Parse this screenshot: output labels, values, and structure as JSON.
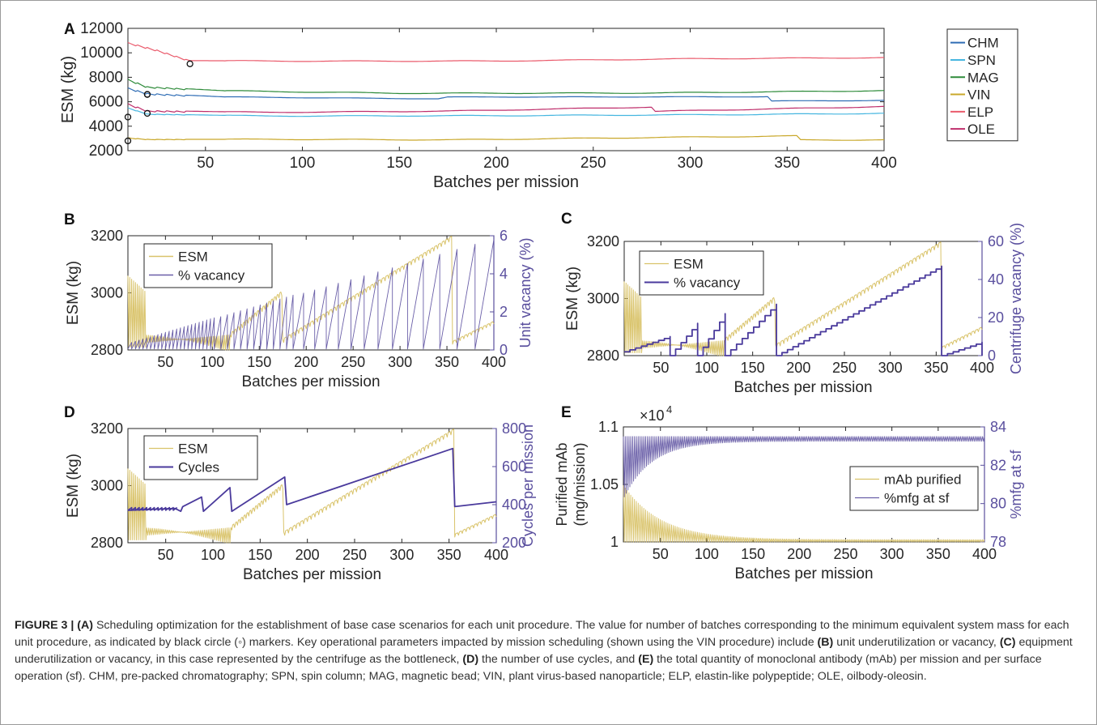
{
  "chart_data": [
    {
      "id": "A",
      "panel_label": "A",
      "type": "line",
      "xlabel": "Batches per mission",
      "ylabel": "ESM (kg)",
      "xlim": [
        10,
        400
      ],
      "ylim": [
        2000,
        12000
      ],
      "xticks": [
        50,
        100,
        150,
        200,
        250,
        300,
        350,
        400
      ],
      "yticks": [
        2000,
        4000,
        6000,
        8000,
        10000,
        12000
      ],
      "legend_position": "top-right",
      "grid": false,
      "series": [
        {
          "name": "CHM",
          "color": "#2f6db5",
          "values": [
            [
              10,
              7000
            ],
            [
              20,
              6550
            ],
            [
              60,
              6300
            ],
            [
              170,
              6200
            ],
            [
              175,
              6350
            ],
            [
              340,
              6400
            ],
            [
              342,
              6050
            ],
            [
              400,
              6100
            ]
          ],
          "marker": [
            20,
            6600
          ]
        },
        {
          "name": "SPN",
          "color": "#46b6e0",
          "values": [
            [
              10,
              5450
            ],
            [
              20,
              4950
            ],
            [
              80,
              4800
            ],
            [
              200,
              4850
            ],
            [
              330,
              4950
            ],
            [
              400,
              5050
            ]
          ],
          "marker": [
            10,
            4750
          ]
        },
        {
          "name": "MAG",
          "color": "#2e8b3a",
          "values": [
            [
              10,
              7700
            ],
            [
              20,
              7100
            ],
            [
              60,
              6800
            ],
            [
              150,
              6650
            ],
            [
              280,
              6700
            ],
            [
              400,
              6900
            ]
          ],
          "marker": [
            20,
            6600
          ]
        },
        {
          "name": "VIN",
          "color": "#c9a82b",
          "values": [
            [
              10,
              3000
            ],
            [
              20,
              2880
            ],
            [
              90,
              2900
            ],
            [
              175,
              2870
            ],
            [
              270,
              3050
            ],
            [
              355,
              3200
            ],
            [
              357,
              2870
            ],
            [
              400,
              2880
            ]
          ],
          "marker": [
            10,
            2800
          ]
        },
        {
          "name": "ELP",
          "color": "#ea5b6c",
          "values": [
            [
              10,
              10700
            ],
            [
              25,
              10100
            ],
            [
              42,
              9250
            ],
            [
              100,
              9250
            ],
            [
              200,
              9300
            ],
            [
              300,
              9500
            ],
            [
              400,
              9600
            ]
          ],
          "marker": [
            42,
            9100
          ]
        },
        {
          "name": "OLE",
          "color": "#bf2e6b",
          "values": [
            [
              10,
              5700
            ],
            [
              20,
              5150
            ],
            [
              80,
              5050
            ],
            [
              175,
              5200
            ],
            [
              280,
              5550
            ],
            [
              282,
              5200
            ],
            [
              400,
              5600
            ]
          ],
          "marker": [
            20,
            5050
          ]
        }
      ]
    },
    {
      "id": "B",
      "panel_label": "B",
      "type": "line",
      "xlabel": "Batches per mission",
      "ylabel": "ESM (kg)",
      "y2label": "Unit vacancy (%)",
      "xlim": [
        10,
        400
      ],
      "ylim": [
        2800,
        3200
      ],
      "y2lim": [
        0,
        6
      ],
      "xticks": [
        50,
        100,
        150,
        200,
        250,
        300,
        350,
        400
      ],
      "yticks": [
        2800,
        3000,
        3200
      ],
      "y2ticks": [
        0,
        2,
        4,
        6
      ],
      "legend_position": "top-left",
      "series": [
        {
          "name": "ESM",
          "color": "#d9c36a",
          "axis": "left"
        },
        {
          "name": "% vacancy",
          "color": "#6a5fa8",
          "axis": "right"
        }
      ]
    },
    {
      "id": "C",
      "panel_label": "C",
      "type": "line",
      "xlabel": "Batches per mission",
      "ylabel": "ESM (kg)",
      "y2label": "Centrifuge vacancy (%)",
      "xlim": [
        10,
        400
      ],
      "ylim": [
        2800,
        3200
      ],
      "y2lim": [
        0,
        60
      ],
      "xticks": [
        50,
        100,
        150,
        200,
        250,
        300,
        350,
        400
      ],
      "yticks": [
        2800,
        3000,
        3200
      ],
      "y2ticks": [
        0,
        20,
        40,
        60
      ],
      "legend_position": "top-left",
      "series": [
        {
          "name": "ESM",
          "color": "#d9c36a",
          "axis": "left"
        },
        {
          "name": "% vacancy",
          "color": "#4a3a9c",
          "axis": "right"
        }
      ]
    },
    {
      "id": "D",
      "panel_label": "D",
      "type": "line",
      "xlabel": "Batches per mission",
      "ylabel": "ESM (kg)",
      "y2label": "Cycles per mission",
      "xlim": [
        10,
        400
      ],
      "ylim": [
        2800,
        3200
      ],
      "y2lim": [
        200,
        800
      ],
      "xticks": [
        50,
        100,
        150,
        200,
        250,
        300,
        350,
        400
      ],
      "yticks": [
        2800,
        3000,
        3200
      ],
      "y2ticks": [
        200,
        400,
        600,
        800
      ],
      "legend_position": "top-left",
      "series": [
        {
          "name": "ESM",
          "color": "#d9c36a",
          "axis": "left"
        },
        {
          "name": "Cycles",
          "color": "#4a3a9c",
          "axis": "right"
        }
      ]
    },
    {
      "id": "E",
      "panel_label": "E",
      "type": "line",
      "xlabel": "Batches per mission",
      "ylabel_line1": "Purified mAb",
      "ylabel_line2": "(mg/mission)",
      "y2label": "%mfg at sf",
      "exponent_prefix": "×10",
      "exponent": "4",
      "xlim": [
        10,
        400
      ],
      "ylim": [
        1,
        1.1
      ],
      "y2lim": [
        78,
        84
      ],
      "xticks": [
        50,
        100,
        150,
        200,
        250,
        300,
        350,
        400
      ],
      "yticks": [
        "1",
        "1.05",
        "1.1"
      ],
      "y2ticks": [
        78,
        80,
        82,
        84
      ],
      "legend_position": "right",
      "series": [
        {
          "name": "mAb purified",
          "color": "#d9c36a",
          "axis": "left"
        },
        {
          "name": "%mfg at sf",
          "color": "#6a5fa8",
          "axis": "right"
        }
      ]
    }
  ],
  "caption": {
    "fig_label": "FIGURE 3 | ",
    "a_label": "(A)",
    "text_a": " Scheduling optimization for the establishment of base case scenarios for each unit procedure. The value for number of batches corresponding to the minimum equivalent system mass for each unit procedure, as indicated by black circle (◦) markers. Key operational parameters impacted by mission scheduling (shown using the VIN procedure) include ",
    "b_label": "(B)",
    "text_b": " unit underutilization or vacancy, ",
    "c_label": "(C)",
    "text_c": " equipment underutilization or vacancy, in this case represented by the centrifuge as the bottleneck, ",
    "d_label": "(D)",
    "text_d": " the number of use cycles, and ",
    "e_label": "(E)",
    "text_e": " the total quantity of monoclonal antibody (mAb) per mission and per surface operation (sf). CHM, pre-packed chromatography; SPN, spin column; MAG, magnetic bead; VIN, plant virus-based nanoparticle; ELP, elastin-like polypeptide; OLE, oilbody-oleosin."
  }
}
